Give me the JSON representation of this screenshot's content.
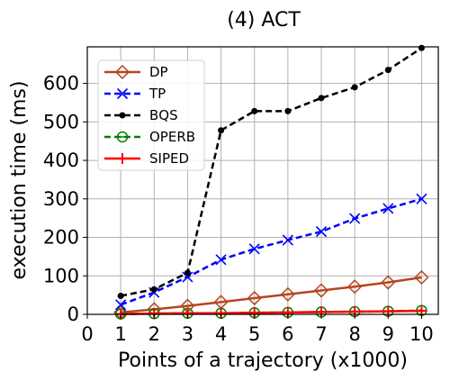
{
  "chart_data": {
    "type": "line",
    "title": "(4) ACT",
    "xlabel": "Points of a trajectory (x1000)",
    "ylabel": "execution time (ms)",
    "x": [
      1,
      2,
      3,
      4,
      5,
      6,
      7,
      8,
      9,
      10
    ],
    "xticks": [
      "0",
      "1",
      "2",
      "3",
      "4",
      "5",
      "6",
      "7",
      "8",
      "9",
      "10"
    ],
    "yticks": [
      "0",
      "100",
      "200",
      "300",
      "400",
      "500",
      "600"
    ],
    "xlim": [
      0,
      10.5
    ],
    "ylim": [
      0,
      695
    ],
    "grid": true,
    "legend_position": "upper-left",
    "series": [
      {
        "name": "DP",
        "color": "#b5461c",
        "dash": "solid",
        "marker": "diamond-open",
        "values": [
          5,
          13,
          22,
          32,
          42,
          52,
          62,
          72,
          83,
          96
        ]
      },
      {
        "name": "TP",
        "color": "#0000ff",
        "dash": "dashed",
        "marker": "x",
        "values": [
          25,
          57,
          97,
          142,
          170,
          193,
          215,
          249,
          275,
          300
        ]
      },
      {
        "name": "BQS",
        "color": "#000000",
        "dash": "dashed",
        "marker": "dot",
        "values": [
          48,
          65,
          108,
          478,
          528,
          528,
          562,
          590,
          635,
          692
        ]
      },
      {
        "name": "OPERB",
        "color": "#008000",
        "dash": "dashed",
        "marker": "circle-minus",
        "values": [
          1,
          2,
          3,
          3,
          4,
          5,
          6,
          7,
          8,
          10
        ]
      },
      {
        "name": "SIPED",
        "color": "#ff0000",
        "dash": "solid",
        "marker": "plus",
        "values": [
          1,
          2,
          3,
          3,
          4,
          5,
          6,
          7,
          8,
          9
        ]
      }
    ]
  }
}
